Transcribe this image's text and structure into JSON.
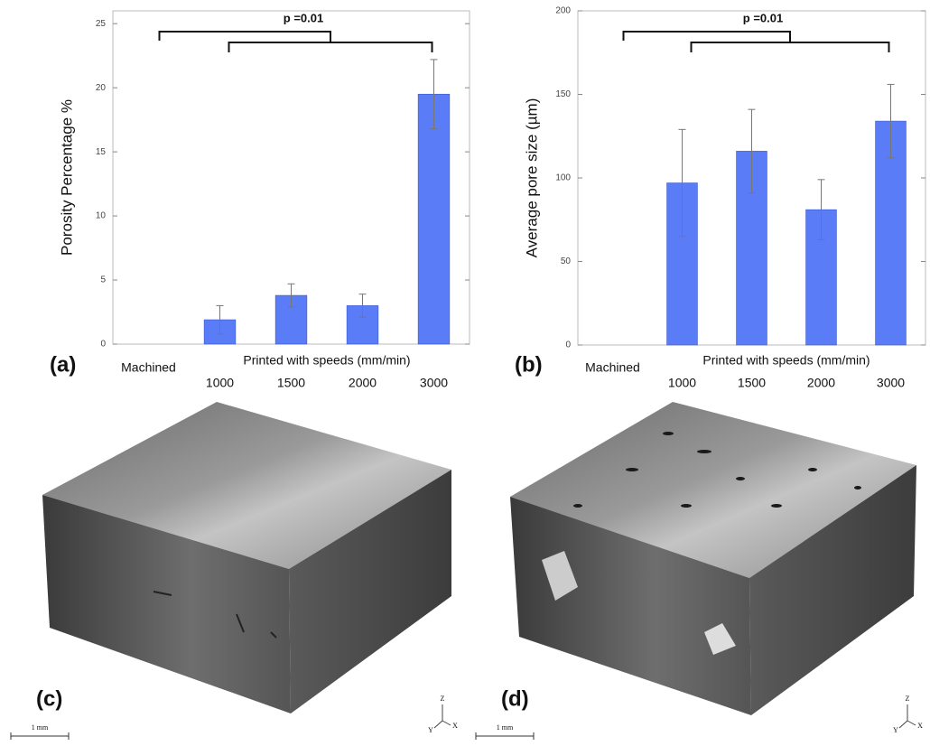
{
  "chart_data": [
    {
      "type": "bar",
      "panel_label": "(a)",
      "y_label": "Porosity Percentage %",
      "annotation": "p =0.01",
      "group_label": "Printed with speeds (mm/min)",
      "categories": [
        "Machined",
        "1000",
        "1500",
        "2000",
        "3000"
      ],
      "values": [
        null,
        1.9,
        3.8,
        3.0,
        19.5
      ],
      "errors": [
        null,
        1.1,
        0.9,
        0.9,
        2.7
      ],
      "color": "#5b7cf7",
      "ylim": [
        0,
        26
      ],
      "yticks": [
        0,
        5,
        10,
        15,
        20,
        25
      ],
      "grid": false
    },
    {
      "type": "bar",
      "panel_label": "(b)",
      "y_label": "Average pore size (µm)",
      "annotation": "p =0.01",
      "group_label": "Printed with speeds (mm/min)",
      "categories": [
        "Machined",
        "1000",
        "1500",
        "2000",
        "3000"
      ],
      "values": [
        null,
        97,
        116,
        81,
        134
      ],
      "errors": [
        null,
        32,
        25,
        18,
        22
      ],
      "color": "#5b7cf7",
      "ylim": [
        0,
        200
      ],
      "yticks": [
        0,
        50,
        100,
        150,
        200
      ],
      "grid": false
    }
  ],
  "panels": [
    {
      "label": "(c)",
      "scale_bar": "1 mm",
      "axes": [
        "Z",
        "Y",
        "X"
      ]
    },
    {
      "label": "(d)",
      "scale_bar": "1 mm",
      "axes": [
        "Z",
        "Y",
        "X"
      ]
    }
  ]
}
